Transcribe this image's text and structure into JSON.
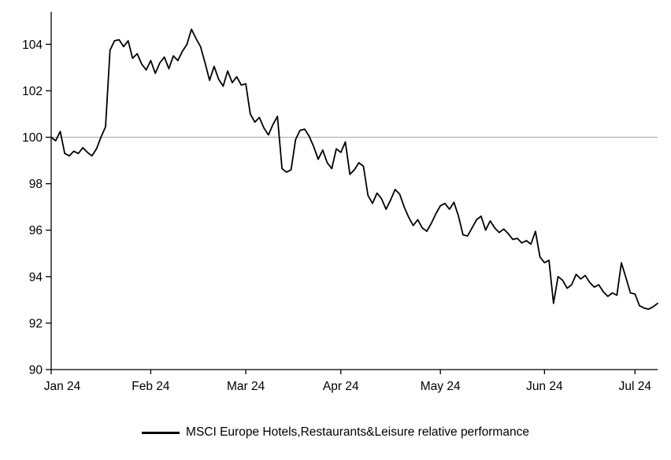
{
  "figure": {
    "background": "#ffffff",
    "legend": {
      "label": "MSCI Europe Hotels,Restaurants&Leisure relative performance",
      "line_color": "#000000"
    }
  },
  "chart_data": {
    "type": "line",
    "title": "",
    "xlabel": "",
    "ylabel": "",
    "x_tick_labels": [
      "Jan 24",
      "Feb 24",
      "Mar 24",
      "Apr 24",
      "May 24",
      "Jun 24",
      "Jul 24"
    ],
    "x_tick_indices": [
      0,
      22,
      43,
      64,
      86,
      109,
      129
    ],
    "y_ticks": [
      90,
      92,
      94,
      96,
      98,
      100,
      102,
      104
    ],
    "ylim": [
      90,
      105.4
    ],
    "grid": "single horizontal reference line at 100",
    "reference_line_y": 100,
    "reference_line_color": "#a6a6a6",
    "axis_color": "#000000",
    "legend_position": "bottom-center",
    "series": [
      {
        "name": "MSCI Europe Hotels,Restaurants&Leisure relative performance",
        "color": "#000000",
        "values": [
          100.0,
          99.85,
          100.25,
          99.3,
          99.2,
          99.4,
          99.3,
          99.55,
          99.35,
          99.2,
          99.5,
          100.0,
          100.45,
          103.75,
          104.15,
          104.2,
          103.9,
          104.15,
          103.4,
          103.6,
          103.15,
          102.9,
          103.3,
          102.75,
          103.2,
          103.45,
          102.95,
          103.5,
          103.3,
          103.7,
          104.0,
          104.65,
          104.25,
          103.9,
          103.2,
          102.45,
          103.05,
          102.5,
          102.2,
          102.85,
          102.35,
          102.6,
          102.25,
          102.3,
          101.0,
          100.65,
          100.85,
          100.4,
          100.1,
          100.55,
          100.9,
          98.65,
          98.5,
          98.6,
          99.9,
          100.3,
          100.35,
          100.05,
          99.6,
          99.05,
          99.45,
          98.9,
          98.65,
          99.5,
          99.35,
          99.8,
          98.4,
          98.6,
          98.9,
          98.75,
          97.5,
          97.15,
          97.6,
          97.35,
          96.9,
          97.3,
          97.75,
          97.55,
          97.0,
          96.55,
          96.2,
          96.45,
          96.1,
          95.95,
          96.3,
          96.7,
          97.05,
          97.15,
          96.9,
          97.2,
          96.6,
          95.8,
          95.75,
          96.1,
          96.45,
          96.6,
          96.0,
          96.4,
          96.1,
          95.9,
          96.05,
          95.85,
          95.6,
          95.65,
          95.45,
          95.55,
          95.4,
          95.95,
          94.85,
          94.6,
          94.7,
          92.85,
          94.0,
          93.85,
          93.5,
          93.65,
          94.1,
          93.9,
          94.05,
          93.75,
          93.55,
          93.65,
          93.35,
          93.15,
          93.3,
          93.2,
          94.6,
          93.95,
          93.3,
          93.25,
          92.75,
          92.65,
          92.6,
          92.7,
          92.85
        ]
      }
    ]
  }
}
